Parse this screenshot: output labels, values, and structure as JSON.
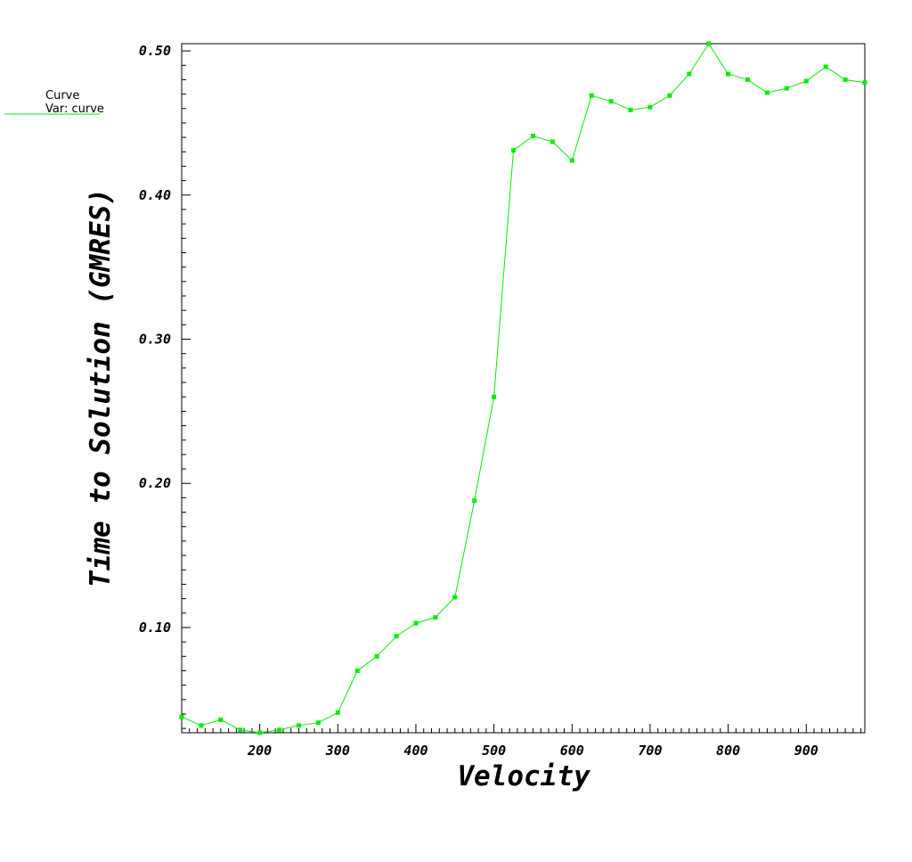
{
  "legend": {
    "title": "Curve",
    "var_label": "Var: curve"
  },
  "chart_data": {
    "type": "line",
    "xlabel": "Velocity",
    "ylabel": "Time to Solution (GMRES)",
    "xlim": [
      100,
      975
    ],
    "ylim": [
      0.027,
      0.505
    ],
    "x_ticks": [
      200,
      300,
      400,
      500,
      600,
      700,
      800,
      900
    ],
    "y_ticks": [
      0.1,
      0.2,
      0.3,
      0.4,
      0.5
    ],
    "y_tick_labels": [
      "0.10",
      "0.20",
      "0.30",
      "0.40",
      "0.50"
    ],
    "grid": false,
    "legend_placement": "top-left, outside plot",
    "series": [
      {
        "name": "Curve",
        "color": "#00ee00",
        "marker": "square",
        "x": [
          100,
          125,
          150,
          175,
          200,
          225,
          250,
          275,
          300,
          325,
          350,
          375,
          400,
          425,
          450,
          475,
          500,
          525,
          550,
          575,
          600,
          625,
          650,
          675,
          700,
          725,
          750,
          775,
          800,
          825,
          850,
          875,
          900,
          925,
          950,
          975
        ],
        "y": [
          0.038,
          0.032,
          0.036,
          0.029,
          0.027,
          0.029,
          0.032,
          0.034,
          0.041,
          0.07,
          0.08,
          0.094,
          0.103,
          0.107,
          0.121,
          0.188,
          0.26,
          0.431,
          0.441,
          0.437,
          0.424,
          0.469,
          0.465,
          0.459,
          0.461,
          0.469,
          0.484,
          0.505,
          0.484,
          0.48,
          0.471,
          0.474,
          0.479,
          0.489,
          0.48,
          0.478
        ]
      }
    ]
  }
}
